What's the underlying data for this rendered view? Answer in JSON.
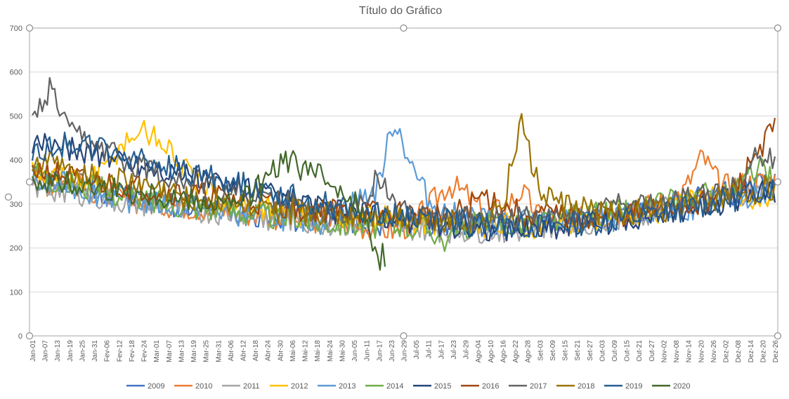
{
  "chart_data": {
    "type": "line",
    "title": "Título do Gráfico",
    "ylim": [
      0,
      700
    ],
    "yticks": [
      0,
      100,
      200,
      300,
      400,
      500,
      600,
      700
    ],
    "grid": true,
    "legend_position": "bottom",
    "x_tick_labels": [
      "Jan-01",
      "Jan-07",
      "Jan-13",
      "Jan-19",
      "Jan-25",
      "Jan-31",
      "Fev-06",
      "Fev-12",
      "Fev-18",
      "Fev-24",
      "Mar-01",
      "Mar-07",
      "Mar-13",
      "Mar-19",
      "Mar-25",
      "Mar-31",
      "Abr-06",
      "Abr-12",
      "Abr-18",
      "Abr-24",
      "Abr-30",
      "Mai-06",
      "Mai-12",
      "Mai-18",
      "Mai-24",
      "Mai-30",
      "Jun-05",
      "Jun-11",
      "Jun-17",
      "Jun-23",
      "Jun-29",
      "Jul-05",
      "Jul-11",
      "Jul-17",
      "Jul-23",
      "Jul-29",
      "Ago-04",
      "Ago-10",
      "Ago-16",
      "Ago-22",
      "Ago-28",
      "Set-03",
      "Set-09",
      "Set-15",
      "Set-21",
      "Set-27",
      "Out-03",
      "Out-09",
      "Out-15",
      "Out-21",
      "Out-27",
      "Nov-02",
      "Nov-08",
      "Nov-14",
      "Nov-20",
      "Nov-26",
      "Dez-02",
      "Dez-08",
      "Dez-14",
      "Dez-20",
      "Dez-26"
    ],
    "series": [
      {
        "name": "2009",
        "color": "#4472C4",
        "values": [
          370,
          350,
          365,
          340,
          330,
          320,
          310,
          300,
          300,
          295,
          290,
          285,
          280,
          275,
          270,
          265,
          265,
          262,
          260,
          258,
          255,
          255,
          253,
          250,
          250,
          248,
          250,
          252,
          255,
          258,
          262,
          268,
          275,
          282,
          290,
          298,
          305,
          312,
          320,
          330,
          340,
          350
        ]
      },
      {
        "name": "2010",
        "color": "#ED7D31",
        "values": [
          360,
          345,
          355,
          335,
          325,
          315,
          305,
          300,
          298,
          292,
          288,
          282,
          278,
          272,
          268,
          262,
          262,
          258,
          250,
          245,
          240,
          255,
          300,
          345,
          320,
          275,
          290,
          330,
          270,
          260,
          265,
          270,
          278,
          285,
          295,
          305,
          330,
          410,
          340,
          345,
          350,
          355
        ]
      },
      {
        "name": "2011",
        "color": "#A5A5A5",
        "values": [
          340,
          330,
          335,
          320,
          310,
          305,
          300,
          295,
          290,
          285,
          282,
          278,
          275,
          270,
          265,
          260,
          258,
          255,
          252,
          250,
          248,
          245,
          243,
          240,
          238,
          240,
          242,
          245,
          248,
          252,
          258,
          262,
          268,
          275,
          282,
          290,
          298,
          305,
          312,
          320,
          328,
          335
        ]
      },
      {
        "name": "2012",
        "color": "#FFC000",
        "values": [
          380,
          370,
          360,
          350,
          380,
          440,
          470,
          450,
          400,
          350,
          320,
          305,
          295,
          290,
          285,
          280,
          275,
          272,
          270,
          268,
          265,
          262,
          260,
          258,
          255,
          252,
          250,
          250,
          252,
          255,
          258,
          262,
          268,
          275,
          282,
          290,
          300,
          310,
          320,
          325,
          300,
          310
        ]
      },
      {
        "name": "2013",
        "color": "#5B9BD5",
        "values": [
          350,
          340,
          345,
          330,
          320,
          312,
          305,
          300,
          295,
          290,
          285,
          280,
          276,
          272,
          268,
          264,
          260,
          290,
          310,
          330,
          495,
          380,
          300,
          275,
          270,
          265,
          262,
          260,
          258,
          258,
          260,
          262,
          265,
          270,
          276,
          283,
          290,
          298,
          306,
          314,
          322,
          330
        ]
      },
      {
        "name": "2014",
        "color": "#70AD47",
        "values": [
          380,
          360,
          350,
          340,
          330,
          320,
          310,
          305,
          300,
          295,
          290,
          285,
          280,
          275,
          270,
          265,
          260,
          258,
          255,
          252,
          250,
          248,
          245,
          210,
          250,
          252,
          255,
          258,
          262,
          266,
          270,
          276,
          282,
          288,
          295,
          302,
          310,
          318,
          326,
          335,
          380,
          360
        ]
      },
      {
        "name": "2015",
        "color": "#264478",
        "values": [
          420,
          440,
          430,
          420,
          410,
          400,
          390,
          380,
          370,
          360,
          350,
          340,
          330,
          320,
          310,
          300,
          290,
          282,
          276,
          270,
          265,
          260,
          256,
          252,
          248,
          246,
          245,
          246,
          248,
          250,
          254,
          258,
          262,
          268,
          274,
          280,
          288,
          296,
          304,
          312,
          320,
          330
        ]
      },
      {
        "name": "2016",
        "color": "#9E480E",
        "values": [
          380,
          370,
          360,
          350,
          345,
          340,
          335,
          330,
          325,
          320,
          315,
          310,
          305,
          300,
          295,
          290,
          285,
          282,
          280,
          278,
          276,
          274,
          272,
          270,
          290,
          320,
          290,
          280,
          275,
          272,
          270,
          270,
          272,
          276,
          280,
          286,
          294,
          304,
          316,
          340,
          420,
          470
        ]
      },
      {
        "name": "2017",
        "color": "#636363",
        "values": [
          480,
          560,
          460,
          440,
          420,
          400,
          385,
          370,
          360,
          350,
          340,
          330,
          320,
          310,
          300,
          292,
          286,
          280,
          290,
          360,
          300,
          282,
          276,
          272,
          270,
          268,
          266,
          265,
          266,
          268,
          272,
          276,
          310,
          290,
          294,
          300,
          308,
          316,
          326,
          338,
          420,
          390
        ]
      },
      {
        "name": "2018",
        "color": "#997300",
        "values": [
          400,
          390,
          380,
          370,
          360,
          350,
          340,
          330,
          320,
          312,
          305,
          300,
          295,
          290,
          285,
          280,
          276,
          274,
          272,
          270,
          268,
          266,
          264,
          262,
          262,
          264,
          300,
          490,
          330,
          300,
          290,
          284,
          280,
          280,
          282,
          286,
          292,
          300,
          310,
          322,
          330,
          340
        ]
      },
      {
        "name": "2019",
        "color": "#255E91",
        "values": [
          410,
          430,
          440,
          430,
          420,
          410,
          400,
          390,
          380,
          370,
          360,
          350,
          340,
          330,
          320,
          310,
          300,
          292,
          286,
          280,
          275,
          270,
          266,
          262,
          258,
          255,
          252,
          250,
          250,
          252,
          255,
          258,
          262,
          268,
          275,
          282,
          290,
          298,
          306,
          314,
          330,
          340
        ]
      },
      {
        "name": "2020",
        "color": "#43682B",
        "values": [
          360,
          350,
          345,
          340,
          335,
          330,
          325,
          320,
          315,
          310,
          305,
          300,
          320,
          360,
          400,
          380,
          360,
          340,
          300,
          180
        ]
      }
    ]
  }
}
